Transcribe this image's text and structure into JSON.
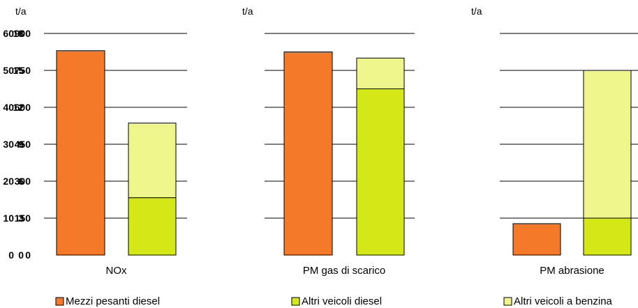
{
  "chart_data": [
    {
      "type": "bar",
      "stacked": true,
      "unit_label": "t/a",
      "category": "NOx",
      "ylim": [
        0,
        900
      ],
      "yticks": [
        0,
        150,
        300,
        450,
        600,
        750,
        900
      ],
      "grid": true,
      "bars": [
        {
          "segments": [
            {
              "series": "Mezzi pesanti diesel",
              "value": 830
            }
          ]
        },
        {
          "segments": [
            {
              "series": "Altri veicoli diesel",
              "value": 233
            },
            {
              "series": "Altri veicoli a benzina",
              "value": 303
            }
          ]
        }
      ]
    },
    {
      "type": "bar",
      "stacked": true,
      "unit_label": "t/a",
      "category": "PM gas di scarico",
      "ylim": [
        0,
        18
      ],
      "yticks": [
        0,
        3,
        6,
        9,
        12,
        15,
        18
      ],
      "grid": true,
      "bars": [
        {
          "segments": [
            {
              "series": "Mezzi pesanti diesel",
              "value": 16.5
            }
          ]
        },
        {
          "segments": [
            {
              "series": "Altri veicoli diesel",
              "value": 13.5
            },
            {
              "series": "Altri veicoli a benzina",
              "value": 2.5
            }
          ]
        }
      ]
    },
    {
      "type": "bar",
      "stacked": true,
      "unit_label": "t/a",
      "category": "PM abrasione",
      "ylim": [
        0,
        60
      ],
      "yticks": [
        0,
        10,
        20,
        30,
        40,
        50,
        60
      ],
      "grid": true,
      "bars": [
        {
          "segments": [
            {
              "series": "Mezzi pesanti diesel",
              "value": 8.5
            }
          ]
        },
        {
          "segments": [
            {
              "series": "Altri veicoli diesel",
              "value": 10
            },
            {
              "series": "Altri veicoli a benzina",
              "value": 40
            }
          ]
        }
      ]
    }
  ],
  "legend": {
    "placement": "bottom",
    "items": [
      {
        "label": "Mezzi pesanti diesel",
        "color": "#f47a2a"
      },
      {
        "label": "Altri veicoli diesel",
        "color": "#d4e817"
      },
      {
        "label": "Altri veicoli a benzina",
        "color": "#eef58a"
      }
    ]
  },
  "colors": {
    "Mezzi pesanti diesel": "#f47a2a",
    "Altri veicoli diesel": "#d4e817",
    "Altri veicoli a benzina": "#eef58a",
    "grid": "#000000",
    "outline": "#000000"
  }
}
